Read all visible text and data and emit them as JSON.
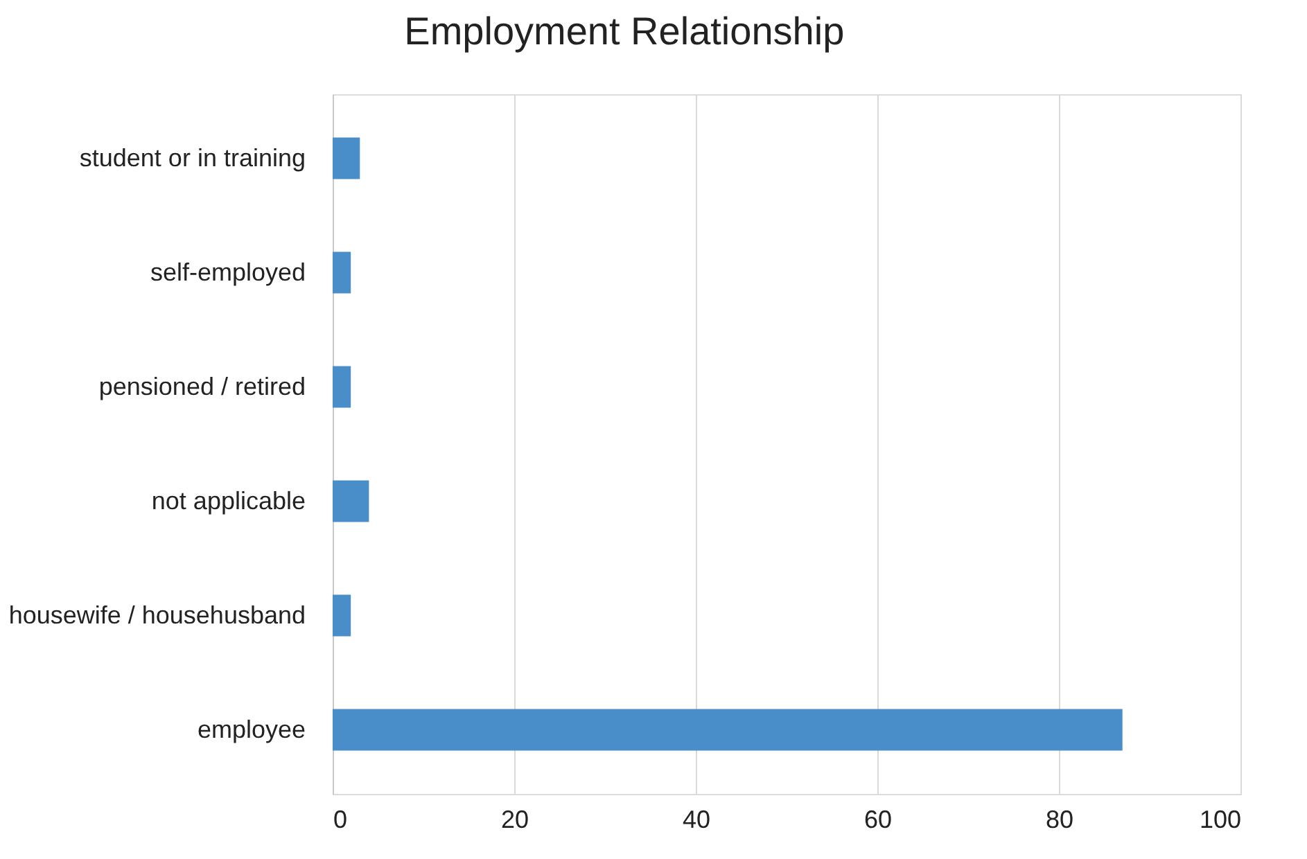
{
  "chart_data": {
    "type": "bar",
    "orientation": "horizontal",
    "title": "Employment Relationship",
    "categories": [
      "student or in training",
      "self-employed",
      "pensioned / retired",
      "not applicable",
      "housewife / househusband",
      "employee"
    ],
    "values": [
      3,
      2,
      2,
      4,
      2,
      87
    ],
    "color": "#4a8ec9",
    "xlim": [
      0,
      100
    ],
    "xticks": [
      0,
      20,
      40,
      60,
      80,
      100
    ],
    "grid": "x"
  }
}
